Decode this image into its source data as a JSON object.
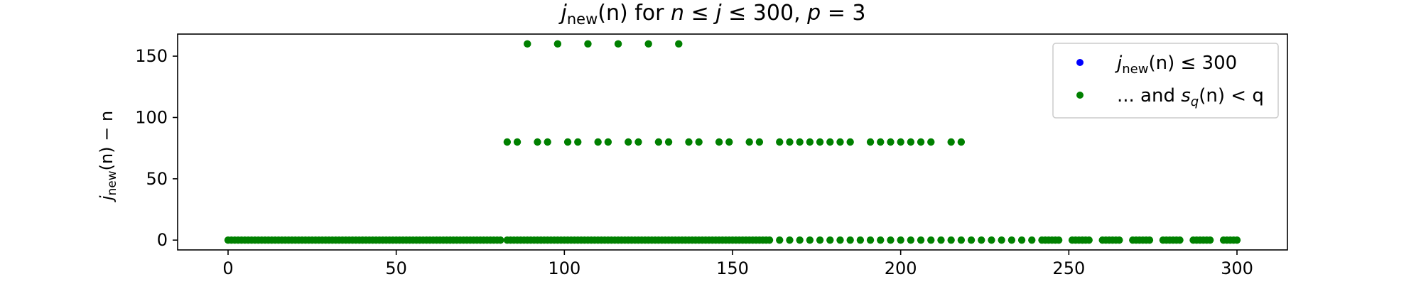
{
  "chart_data": {
    "type": "scatter",
    "title": "j_new(n) for n ≤ j ≤ 300, p = 3",
    "title_parts": {
      "j": "j",
      "sub": "new",
      "n_paren": "(n)",
      "rest": " for ",
      "n": "n",
      "le1": " ≤ ",
      "j2": "j",
      "le2": " ≤ 300, ",
      "p": "p",
      "eq": " = 3"
    },
    "xlabel": "",
    "ylabel": "j_new(n) − n",
    "ylabel_parts": {
      "j": "j",
      "sub": "new",
      "paren": "(n) − n"
    },
    "xlim": [
      -15,
      315
    ],
    "ylim": [
      -8,
      168
    ],
    "x_ticks": [
      0,
      50,
      100,
      150,
      200,
      250,
      300
    ],
    "y_ticks": [
      0,
      50,
      100,
      150
    ],
    "grid": false,
    "legend": {
      "placement": "top-right",
      "entries": [
        {
          "label": "j_new(n) ≤ 300",
          "color": "#0000ff",
          "parts": {
            "j": "j",
            "sub": "new",
            "rest": "(n) ≤ 300"
          }
        },
        {
          "label": "... and s_q(n) < q",
          "color": "#008000",
          "parts": {
            "pre": "... and ",
            "s": "s",
            "sub": "q",
            "rest": "(n) < q"
          }
        }
      ]
    },
    "series": [
      {
        "name": "j_new(n) ≤ 300",
        "color": "#0000ff",
        "points_zero_x": [],
        "points_80_x": [],
        "points_160_x": []
      },
      {
        "name": "... and s_q(n) < q",
        "color": "#008000",
        "zero_ranges": [
          [
            0,
            81
          ],
          [
            83,
            161
          ]
        ],
        "zero_extra_x": [
          164,
          167,
          170,
          173,
          176,
          179,
          182,
          185,
          188,
          191,
          194,
          197,
          200,
          203,
          206,
          209,
          212,
          215,
          218,
          221,
          224,
          227,
          230,
          233,
          236,
          239,
          242,
          243,
          244,
          245,
          246,
          247,
          251,
          252,
          253,
          254,
          255,
          256,
          260,
          261,
          262,
          263,
          264,
          265,
          269,
          270,
          271,
          272,
          273,
          274,
          278,
          279,
          280,
          281,
          282,
          283,
          287,
          288,
          289,
          290,
          291,
          292,
          296,
          297,
          298,
          299,
          300
        ],
        "points_80_x": [
          83,
          86,
          92,
          95,
          101,
          104,
          110,
          113,
          119,
          122,
          128,
          131,
          137,
          140,
          146,
          149,
          155,
          158,
          164,
          167,
          170,
          173,
          176,
          179,
          182,
          185,
          191,
          194,
          197,
          200,
          203,
          206,
          209,
          215,
          218
        ],
        "points_160_x": [
          89,
          98,
          107,
          116,
          125,
          134
        ]
      }
    ]
  }
}
